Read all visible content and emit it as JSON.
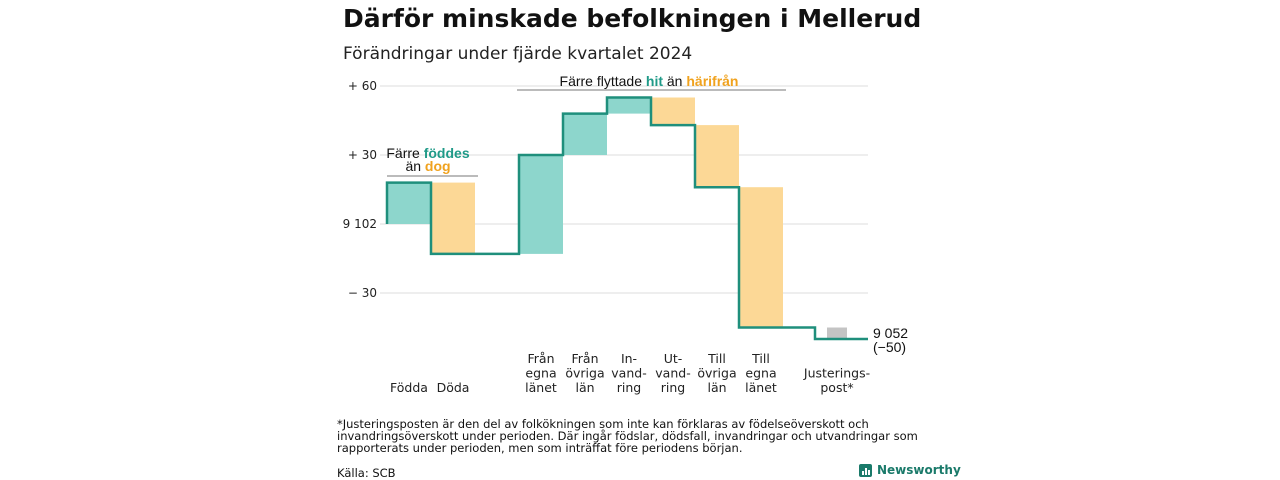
{
  "title": "Därför minskade befolkningen i Mellerud",
  "subtitle": "Förändringar under fjärde kvartalet 2024",
  "chart_data": {
    "type": "waterfall",
    "baseline": 9102,
    "end_value": 9052,
    "end_label": "9 052",
    "end_change_label": "(−50)",
    "ylim": [
      -50,
      64
    ],
    "yticks": [
      {
        "value": 60,
        "label": "+ 60"
      },
      {
        "value": 30,
        "label": "+ 30"
      },
      {
        "value": 0,
        "label": "9 102"
      },
      {
        "value": -30,
        "label": "− 30"
      }
    ],
    "steps": [
      {
        "label": [
          "Födda"
        ],
        "change": 18,
        "kind": "in"
      },
      {
        "label": [
          "Döda"
        ],
        "change": -31,
        "kind": "out"
      },
      {
        "label": [
          "Från",
          "egna",
          "länet"
        ],
        "change": 43,
        "kind": "in"
      },
      {
        "label": [
          "Från",
          "övriga",
          "län"
        ],
        "change": 18,
        "kind": "in"
      },
      {
        "label": [
          "In-",
          "vand-",
          "ring"
        ],
        "change": 7,
        "kind": "in"
      },
      {
        "label": [
          "Ut-",
          "vand-",
          "ring"
        ],
        "change": -12,
        "kind": "out"
      },
      {
        "label": [
          "Till",
          "övriga",
          "län"
        ],
        "change": -27,
        "kind": "out"
      },
      {
        "label": [
          "Till",
          "egna",
          "länet"
        ],
        "change": -61,
        "kind": "out"
      },
      {
        "label": [
          "Justerings-",
          "post*"
        ],
        "change": -5,
        "kind": "adjust"
      }
    ],
    "colors": {
      "in": "#8dd6cc",
      "out": "#fcd896",
      "adjust": "#c4c4c4",
      "line": "#1f8f7c",
      "hit": "#1f9a88",
      "out_text": "#f0a21e"
    },
    "annotations": {
      "births": {
        "line1": "Färre",
        "hit": "föddes",
        "line2": "än",
        "out": "dog"
      },
      "migration": {
        "prefix": "Färre flyttade",
        "hit": "hit",
        "mid": "än",
        "out": "härifrån"
      }
    }
  },
  "footnote": "*Justeringsposten är den del av folkökningen som inte kan förklaras av födelseöverskott och invandringsöverskott under perioden. Där ingår födslar, dödsfall, invandringar och utvandringar som rapporterats under perioden, men som inträffat före periodens början.",
  "source": "Källa: SCB",
  "brand": "Newsworthy"
}
